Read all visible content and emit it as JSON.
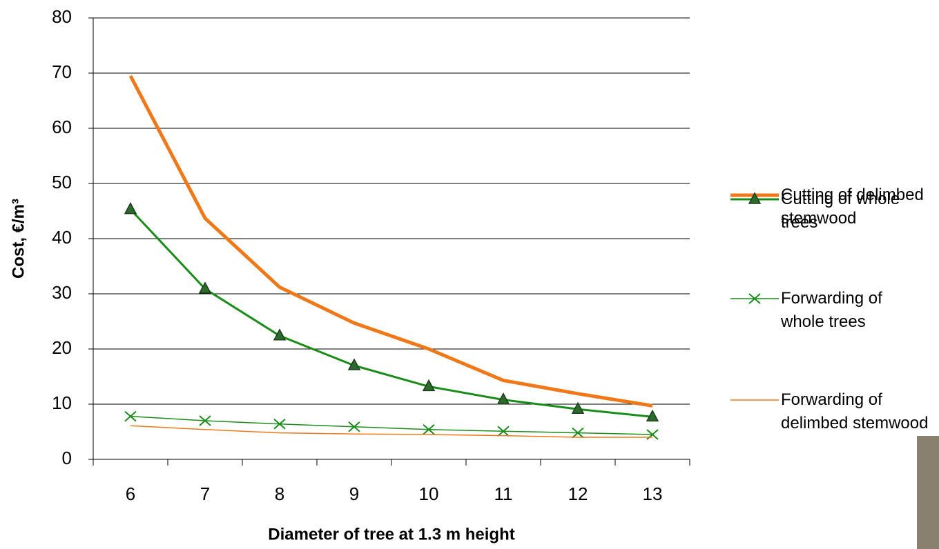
{
  "chart_data": {
    "type": "line",
    "xlabel": "Diameter of tree at 1.3 m height",
    "ylabel": "Cost, €/m³",
    "categories": [
      6,
      7,
      8,
      9,
      10,
      11,
      12,
      13
    ],
    "series": [
      {
        "name": "Cutting of delimbed stemwood",
        "color": "#f07818",
        "width": 5,
        "marker": "none",
        "values": [
          69.5,
          43.7,
          31.2,
          24.7,
          20,
          14.3,
          11.9,
          9.7
        ]
      },
      {
        "name": "Cutting of whole trees",
        "color": "#1a8c1a",
        "width": 3,
        "marker": "triangle",
        "values": [
          45.3,
          30.9,
          22.4,
          17,
          13.2,
          10.8,
          9.1,
          7.7
        ]
      },
      {
        "name": "Forwarding of whole trees",
        "color": "#1a8c1a",
        "width": 1.5,
        "marker": "x",
        "values": [
          7.8,
          7,
          6.4,
          5.9,
          5.4,
          5.1,
          4.8,
          4.5
        ]
      },
      {
        "name": "Forwarding of delimbed stemwood",
        "color": "#f07818",
        "width": 1.5,
        "marker": "none",
        "values": [
          6.1,
          5.4,
          4.8,
          4.6,
          4.5,
          4.3,
          4.0,
          4.0
        ]
      }
    ],
    "ylim": [
      0,
      80
    ],
    "yticks": [
      0,
      10,
      20,
      30,
      40,
      50,
      60,
      70,
      80
    ],
    "grid": true
  }
}
